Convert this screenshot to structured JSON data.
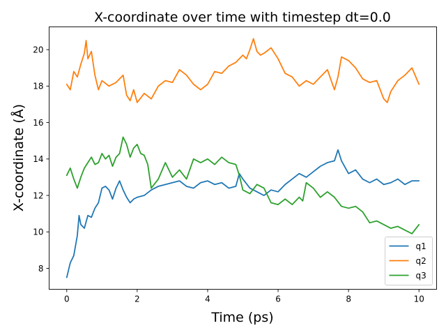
{
  "chart_data": {
    "type": "line",
    "title": "X-coordinate over time with timestep dt=0.0",
    "xlabel": "Time (ps)",
    "ylabel": "X-coordinate (Å)",
    "xlim": [
      -0.5,
      10.5
    ],
    "ylim": [
      6.85,
      21.25
    ],
    "xticks": [
      0,
      2,
      4,
      6,
      8,
      10
    ],
    "xtick_labels": [
      "0",
      "2",
      "4",
      "6",
      "8",
      "10"
    ],
    "yticks": [
      8,
      10,
      12,
      14,
      16,
      18,
      20
    ],
    "ytick_labels": [
      "8",
      "10",
      "12",
      "14",
      "16",
      "18",
      "20"
    ],
    "grid": false,
    "legend_position": "lower-right",
    "series": [
      {
        "name": "q1",
        "color": "#1f77b4",
        "x": [
          0,
          0.1,
          0.2,
          0.3,
          0.35,
          0.4,
          0.5,
          0.6,
          0.7,
          0.8,
          0.9,
          1.0,
          1.1,
          1.2,
          1.3,
          1.4,
          1.5,
          1.6,
          1.7,
          1.8,
          1.9,
          2.0,
          2.2,
          2.4,
          2.6,
          2.8,
          3.0,
          3.2,
          3.4,
          3.6,
          3.8,
          4.0,
          4.2,
          4.4,
          4.6,
          4.8,
          4.9,
          5.0,
          5.2,
          5.4,
          5.6,
          5.8,
          6.0,
          6.2,
          6.4,
          6.6,
          6.8,
          7.0,
          7.2,
          7.4,
          7.6,
          7.7,
          7.8,
          8.0,
          8.2,
          8.4,
          8.6,
          8.8,
          9.0,
          9.2,
          9.4,
          9.6,
          9.8,
          10.0
        ],
        "values": [
          7.5,
          8.3,
          8.7,
          9.8,
          10.9,
          10.4,
          10.2,
          10.9,
          10.8,
          11.3,
          11.6,
          12.4,
          12.5,
          12.3,
          11.8,
          12.4,
          12.8,
          12.3,
          11.9,
          11.6,
          11.8,
          11.9,
          12.0,
          12.3,
          12.5,
          12.6,
          12.7,
          12.8,
          12.5,
          12.4,
          12.7,
          12.8,
          12.6,
          12.7,
          12.4,
          12.5,
          13.2,
          12.9,
          12.4,
          12.2,
          12.0,
          12.3,
          12.2,
          12.6,
          12.9,
          13.2,
          13.0,
          13.3,
          13.6,
          13.8,
          13.9,
          14.5,
          13.9,
          13.2,
          13.4,
          12.9,
          12.7,
          12.9,
          12.6,
          12.7,
          12.9,
          12.6,
          12.8,
          12.8
        ]
      },
      {
        "name": "q2",
        "color": "#ff7f0e",
        "x": [
          0,
          0.1,
          0.2,
          0.3,
          0.4,
          0.5,
          0.55,
          0.6,
          0.7,
          0.8,
          0.9,
          1.0,
          1.2,
          1.4,
          1.6,
          1.7,
          1.8,
          1.9,
          2.0,
          2.2,
          2.4,
          2.6,
          2.8,
          3.0,
          3.2,
          3.4,
          3.6,
          3.8,
          4.0,
          4.2,
          4.4,
          4.6,
          4.8,
          5.0,
          5.1,
          5.2,
          5.3,
          5.4,
          5.5,
          5.6,
          5.8,
          6.0,
          6.2,
          6.4,
          6.6,
          6.8,
          7.0,
          7.2,
          7.4,
          7.6,
          7.7,
          7.8,
          8.0,
          8.2,
          8.4,
          8.6,
          8.8,
          9.0,
          9.1,
          9.2,
          9.4,
          9.6,
          9.8,
          10.0
        ],
        "values": [
          18.1,
          17.8,
          18.8,
          18.5,
          19.2,
          19.8,
          20.5,
          19.5,
          19.9,
          18.6,
          17.8,
          18.3,
          18.0,
          18.2,
          18.6,
          17.5,
          17.2,
          17.8,
          17.1,
          17.6,
          17.3,
          18.0,
          18.3,
          18.2,
          18.9,
          18.6,
          18.1,
          17.8,
          18.1,
          18.8,
          18.7,
          19.1,
          19.3,
          19.7,
          19.5,
          20.0,
          20.6,
          19.9,
          19.7,
          19.8,
          20.1,
          19.5,
          18.7,
          18.5,
          18.0,
          18.3,
          18.1,
          18.5,
          18.9,
          17.8,
          18.5,
          19.6,
          19.4,
          19.0,
          18.4,
          18.2,
          18.3,
          17.3,
          17.1,
          17.7,
          18.3,
          18.6,
          19.0,
          18.1
        ]
      },
      {
        "name": "q3",
        "color": "#2ca02c",
        "x": [
          0,
          0.1,
          0.2,
          0.3,
          0.4,
          0.5,
          0.6,
          0.7,
          0.8,
          0.9,
          1.0,
          1.1,
          1.2,
          1.3,
          1.4,
          1.5,
          1.6,
          1.7,
          1.8,
          1.9,
          2.0,
          2.1,
          2.2,
          2.3,
          2.4,
          2.6,
          2.8,
          3.0,
          3.2,
          3.4,
          3.6,
          3.8,
          4.0,
          4.2,
          4.4,
          4.6,
          4.8,
          4.9,
          5.0,
          5.2,
          5.4,
          5.6,
          5.8,
          6.0,
          6.2,
          6.4,
          6.6,
          6.7,
          6.8,
          7.0,
          7.2,
          7.4,
          7.6,
          7.8,
          8.0,
          8.2,
          8.4,
          8.6,
          8.8,
          9.0,
          9.2,
          9.4,
          9.6,
          9.8,
          10.0
        ],
        "values": [
          13.1,
          13.5,
          12.9,
          12.4,
          13.0,
          13.5,
          13.8,
          14.1,
          13.7,
          13.8,
          14.3,
          14.0,
          14.2,
          13.6,
          14.1,
          14.3,
          15.2,
          14.8,
          14.1,
          14.6,
          14.8,
          14.3,
          14.2,
          13.7,
          12.4,
          12.9,
          13.8,
          13.0,
          13.4,
          12.9,
          14.0,
          13.8,
          14.0,
          13.7,
          14.1,
          13.8,
          13.7,
          13.1,
          12.3,
          12.1,
          12.6,
          12.4,
          11.6,
          11.5,
          11.8,
          11.5,
          11.9,
          11.7,
          12.7,
          12.4,
          11.9,
          12.2,
          11.9,
          11.4,
          11.3,
          11.4,
          11.1,
          10.5,
          10.6,
          10.4,
          10.2,
          10.3,
          10.1,
          9.9,
          10.4
        ]
      }
    ]
  }
}
